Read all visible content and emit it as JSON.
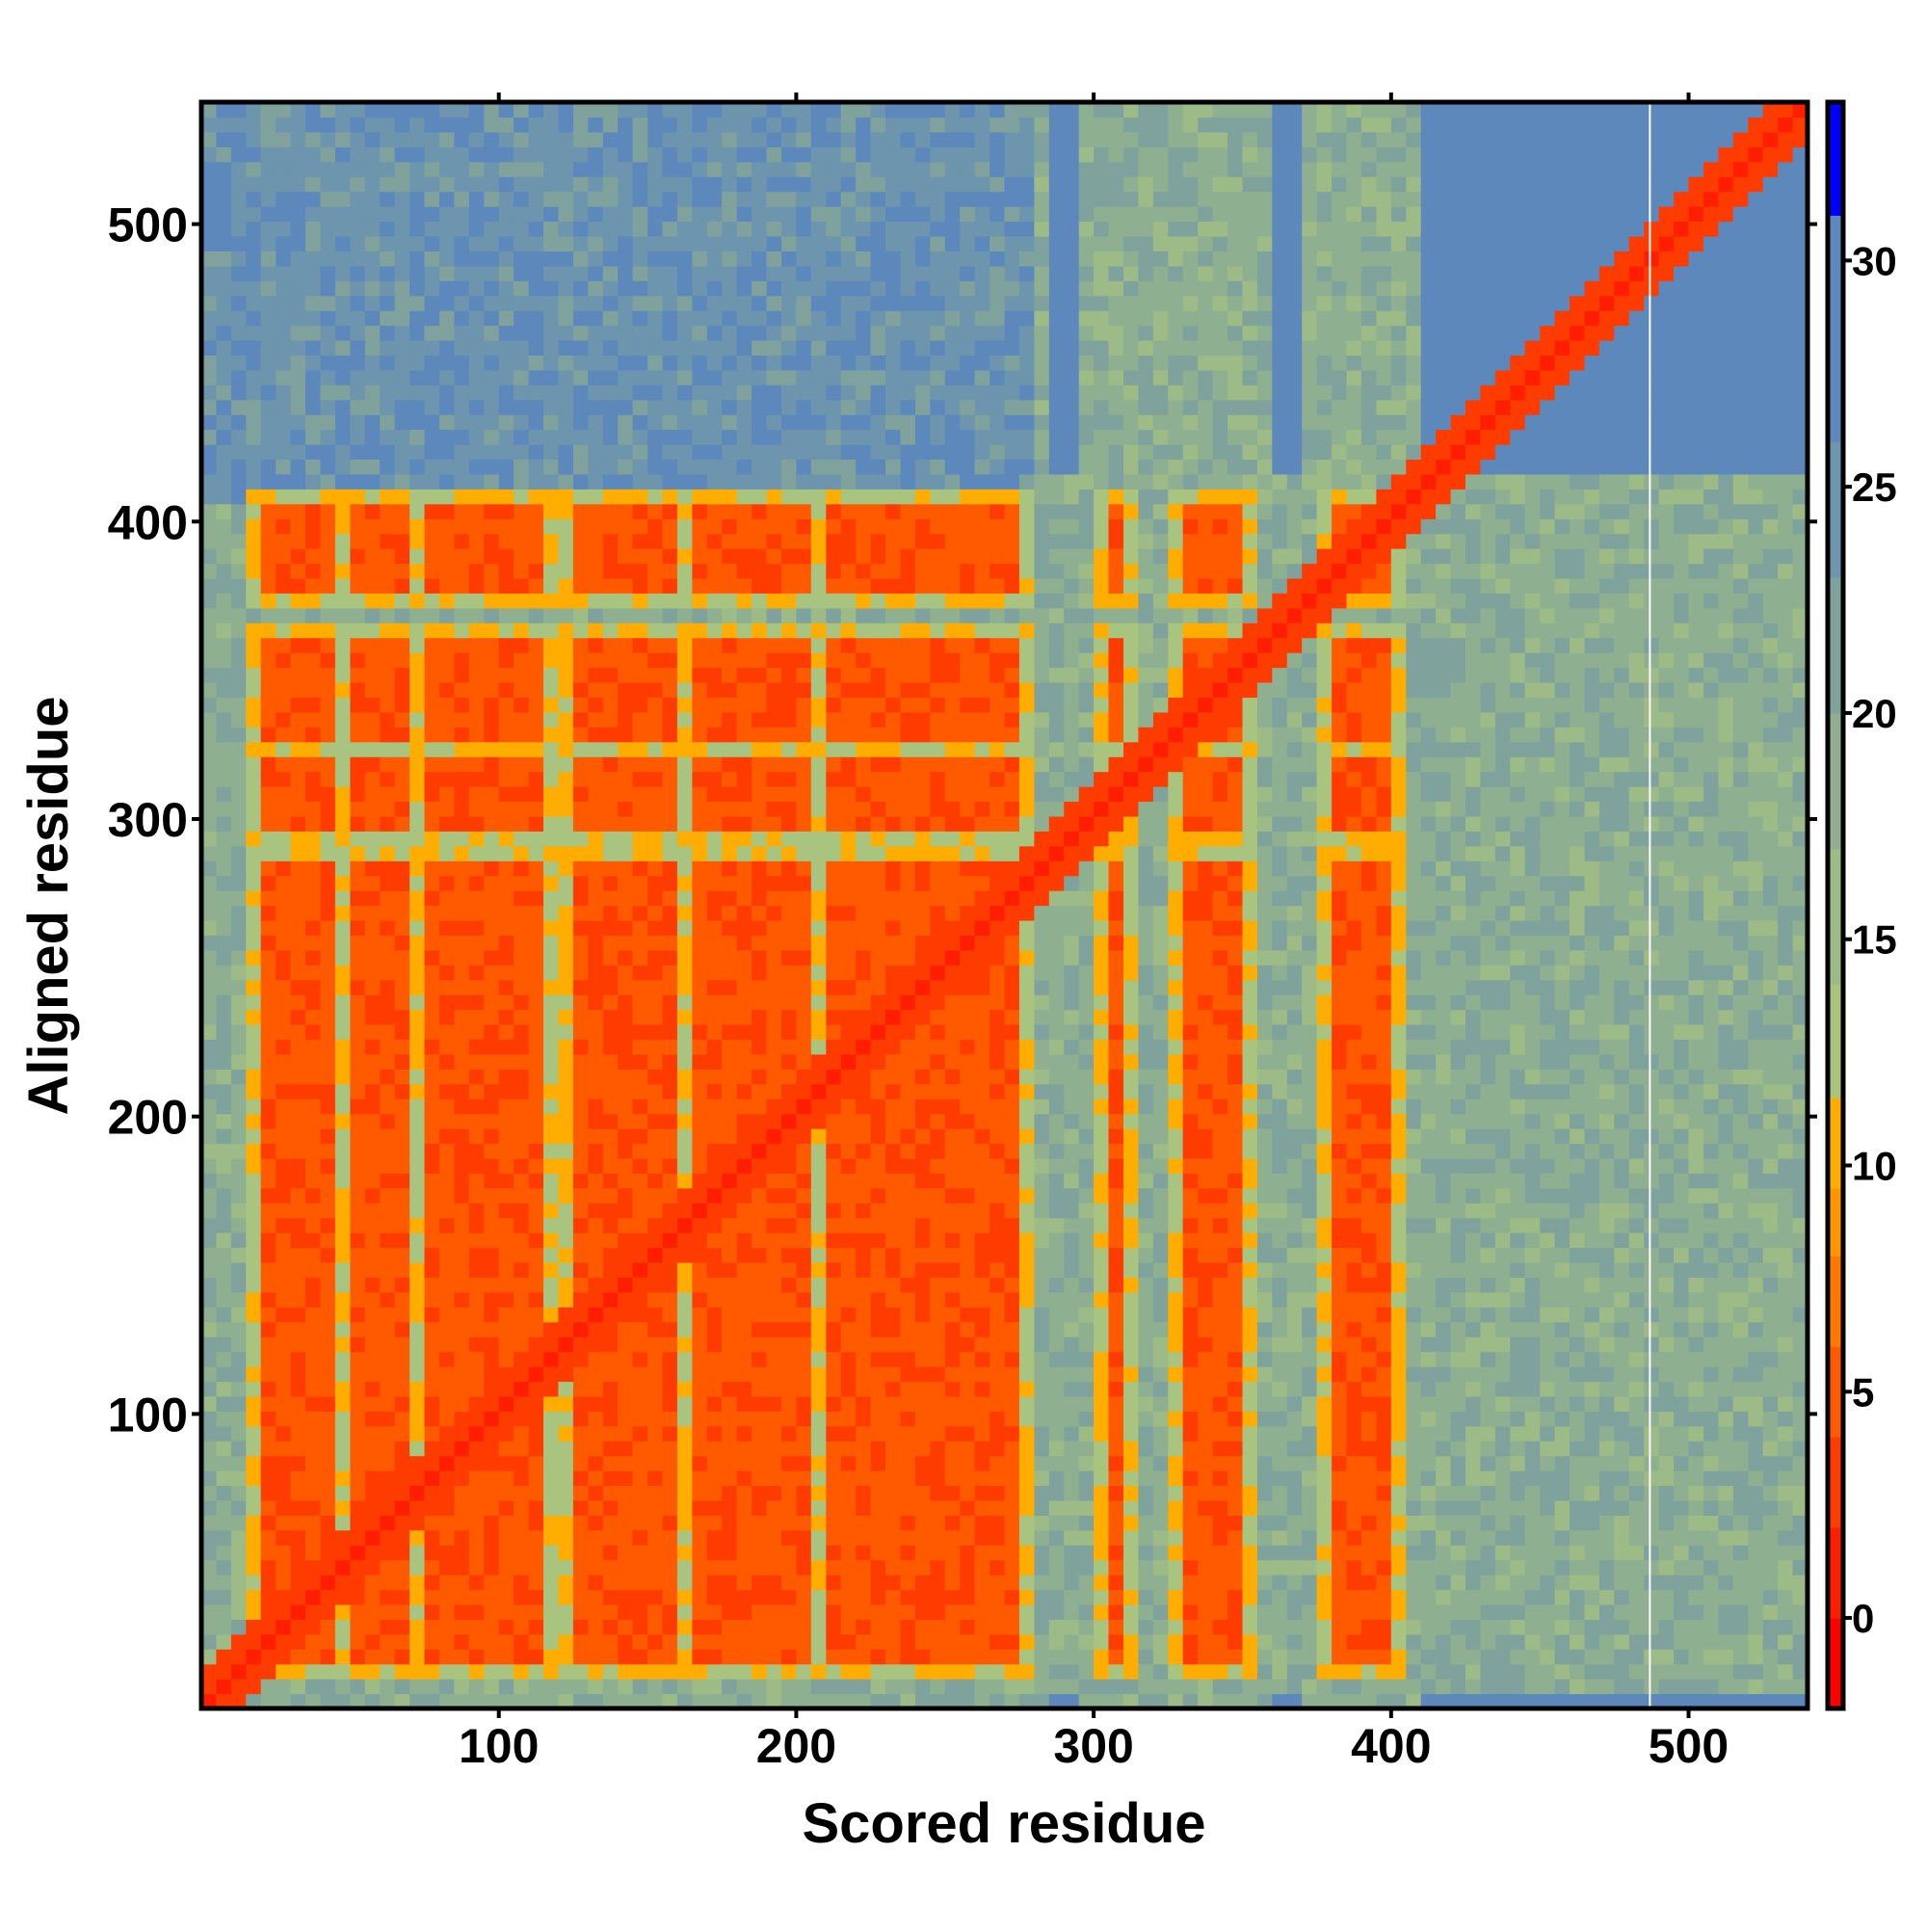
{
  "chart_data": {
    "type": "heatmap",
    "title": "",
    "xlabel": "Scored residue",
    "ylabel": "Aligned residue",
    "xlim": [
      0,
      540
    ],
    "ylim": [
      1,
      541
    ],
    "n_residues": 540,
    "bin_size": 5,
    "x_ticks": [
      "100",
      "200",
      "300",
      "400",
      "500"
    ],
    "y_ticks": [
      "100",
      "200",
      "300",
      "400",
      "500"
    ],
    "x_tick_values": [
      100,
      200,
      300,
      400,
      500
    ],
    "y_tick_values": [
      100,
      200,
      300,
      400,
      500
    ],
    "colorbar": {
      "range": [
        -2,
        33.5
      ],
      "ticks": [
        "0",
        "5",
        "10",
        "15",
        "20",
        "25",
        "30"
      ],
      "tick_values": [
        0,
        5,
        10,
        15,
        20,
        25,
        30
      ],
      "stops": [
        {
          "max": 0,
          "color": "#ff0000"
        },
        {
          "max": 2,
          "color": "#ff1e00"
        },
        {
          "max": 4,
          "color": "#ff3c00"
        },
        {
          "max": 6,
          "color": "#ff5a00"
        },
        {
          "max": 8,
          "color": "#ff7800"
        },
        {
          "max": 9.5,
          "color": "#ff9600"
        },
        {
          "max": 11.5,
          "color": "#ffad00"
        },
        {
          "max": 14,
          "color": "#a8c47f"
        },
        {
          "max": 17,
          "color": "#9dbb86"
        },
        {
          "max": 20,
          "color": "#8fb090"
        },
        {
          "max": 23,
          "color": "#7fa39c"
        },
        {
          "max": 26,
          "color": "#6d95ad"
        },
        {
          "max": 31,
          "color": "#5c88bc"
        },
        {
          "max": 34,
          "color": "#0000ff"
        }
      ]
    },
    "ordered_scored_ranges": [
      [
        18,
        45
      ],
      [
        48,
        68
      ],
      [
        73,
        117
      ],
      [
        123,
        162
      ],
      [
        165,
        178
      ],
      [
        182,
        205
      ],
      [
        208,
        275
      ],
      [
        305,
        312
      ],
      [
        330,
        352
      ],
      [
        380,
        400
      ]
    ],
    "ordered_aligned_ranges": [
      [
        15,
        285
      ],
      [
        295,
        318
      ],
      [
        323,
        362
      ],
      [
        375,
        405
      ]
    ],
    "values": {
      "diagonal": 0.5,
      "near_diagonal": 4,
      "ordered_block": 3,
      "block_edge": 10,
      "background_ordered_columns": 22,
      "background": 28
    },
    "gap_line_residue": 487
  }
}
